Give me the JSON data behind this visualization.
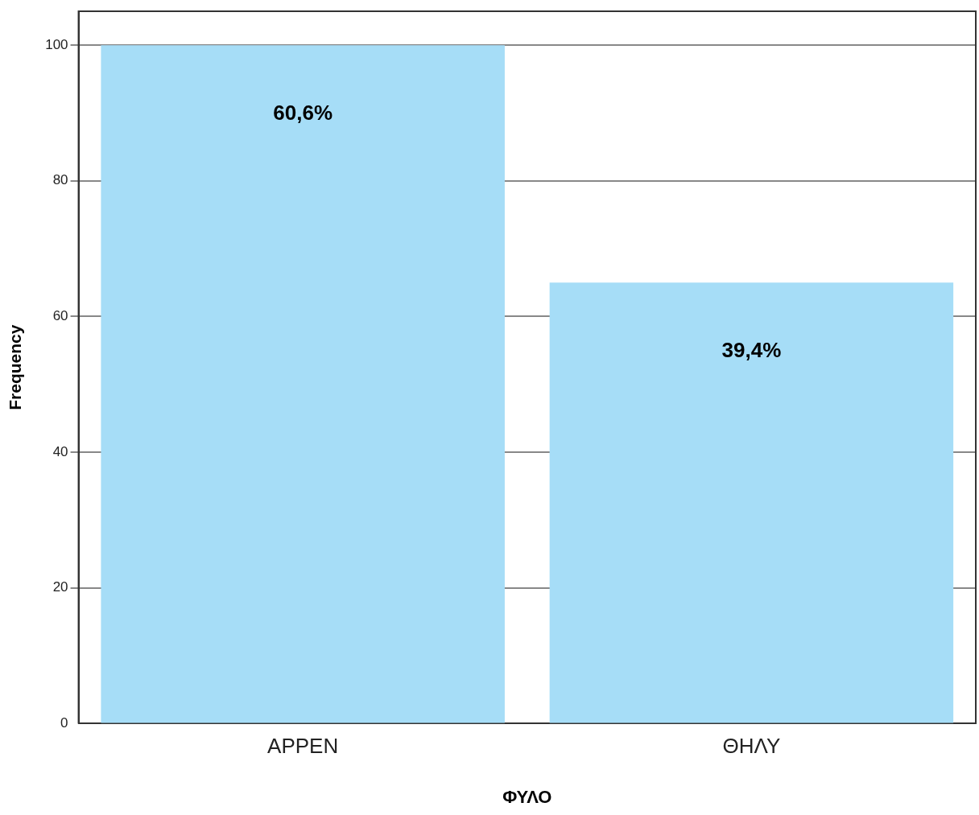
{
  "chart_data": {
    "type": "bar",
    "xlabel": "ΦΥΛΟ",
    "ylabel": "Frequency",
    "categories": [
      "ΑΡΡΕΝ",
      "ΘΗΛΥ"
    ],
    "values": [
      100,
      65
    ],
    "color": "#a6ddf7",
    "annotations": [
      "60,6%",
      "39,4%"
    ],
    "ylim": [
      0,
      105
    ],
    "yticks": [
      0,
      20,
      40,
      60,
      80,
      100
    ],
    "grid": "y",
    "legend": false
  }
}
